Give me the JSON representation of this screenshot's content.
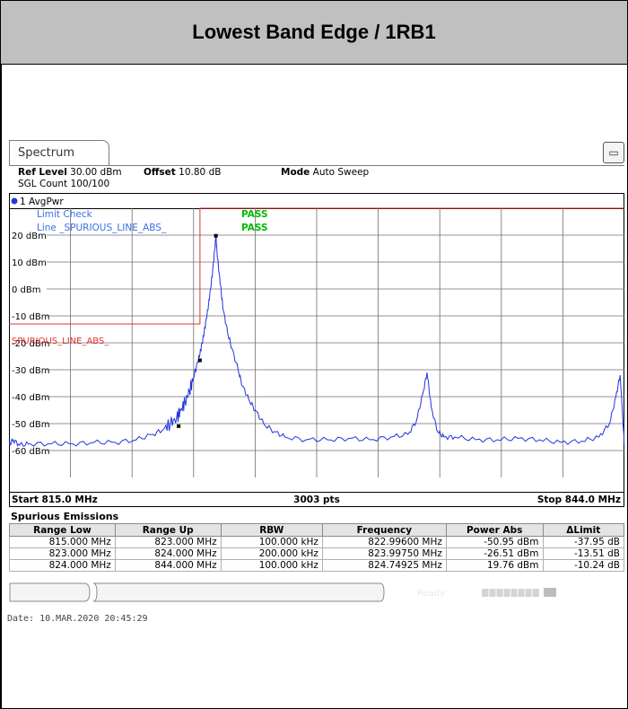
{
  "page": {
    "title": "Lowest Band Edge / 1RB1"
  },
  "tab": {
    "label": "Spectrum",
    "icon": "screen-config-icon"
  },
  "settings": {
    "ref_level_label": "Ref Level",
    "ref_level_value": "30.00 dBm",
    "offset_label": "Offset",
    "offset_value": "10.80 dB",
    "mode_label": "Mode",
    "mode_value": "Auto Sweep",
    "sgl_count": "SGL Count 100/100"
  },
  "trace": {
    "label": "1 AvgPwr"
  },
  "limit": {
    "check_label": "Limit Check",
    "check_result": "PASS",
    "line_label": "Line _SPURIOUS_LINE_ABS_",
    "line_result": "PASS",
    "line_name": "SPURIOUS_LINE_ABS_"
  },
  "footer": {
    "start": "Start 815.0 MHz",
    "points": "3003 pts",
    "stop": "Stop 844.0 MHz"
  },
  "spurious": {
    "title": "Spurious Emissions",
    "headers": [
      "Range Low",
      "Range Up",
      "RBW",
      "Frequency",
      "Power Abs",
      "ΔLimit"
    ],
    "rows": [
      [
        "815.000 MHz",
        "823.000 MHz",
        "100.000 kHz",
        "822.99600 MHz",
        "-50.95 dBm",
        "-37.95 dB"
      ],
      [
        "823.000 MHz",
        "824.000 MHz",
        "200.000 kHz",
        "823.99750 MHz",
        "-26.51 dBm",
        "-13.51 dB"
      ],
      [
        "824.000 MHz",
        "844.000 MHz",
        "100.000 kHz",
        "824.74925 MHz",
        "19.76 dBm",
        "-10.24 dB"
      ]
    ]
  },
  "status": {
    "ready": "Ready"
  },
  "date": "Date: 10.MAR.2020  20:45:29",
  "chart_data": {
    "type": "line",
    "xlim": [
      815.0,
      844.0
    ],
    "ylim": [
      -70,
      30
    ],
    "y_tick_labels": [
      "20 dBm",
      "10 dBm",
      "0 dBm",
      "-10 dBm",
      "-20 dBm",
      "-30 dBm",
      "-40 dBm",
      "-50 dBm",
      "-60 dBm"
    ],
    "y_ticks": [
      20,
      10,
      0,
      -10,
      -20,
      -30,
      -40,
      -50,
      -60
    ],
    "grid": true,
    "colors": {
      "trace": "#2233dd",
      "limit": "#e03030",
      "pass": "#00bb00",
      "label": "#3a6fe0"
    },
    "limit_line": {
      "name": "SPURIOUS_LINE_ABS_",
      "x": [
        815.0,
        823.0,
        823.0,
        824.0,
        824.0,
        844.0
      ],
      "y": [
        -13.0,
        -13.0,
        -13.0,
        -13.0,
        30.0,
        30.0
      ]
    },
    "markers": [
      {
        "x": 822.996,
        "y": -50.95
      },
      {
        "x": 823.9975,
        "y": -26.51
      },
      {
        "x": 824.74925,
        "y": 19.76
      }
    ],
    "series": [
      {
        "values_x": [
          815.0,
          815.2,
          815.5,
          816.0,
          817.0,
          818.0,
          819.0,
          820.0,
          821.0,
          821.8,
          822.3,
          822.6,
          822.9,
          823.1,
          823.3,
          823.5,
          823.7,
          823.9,
          824.0,
          824.1,
          824.2,
          824.3,
          824.4,
          824.5,
          824.6,
          824.7,
          824.75,
          824.8,
          824.9,
          825.0,
          825.1,
          825.3,
          825.5,
          825.8,
          826.0,
          826.3,
          826.6,
          827.0,
          827.5,
          828.0,
          829.0,
          830.0,
          831.0,
          832.0,
          833.0,
          833.8,
          834.2,
          834.5,
          834.7,
          834.9,
          835.2,
          835.5,
          836.0,
          837.0,
          838.0,
          839.0,
          840.0,
          841.0,
          842.0,
          842.8,
          843.3,
          843.6,
          843.8,
          844.0
        ],
        "values_y": [
          -58,
          -56,
          -58,
          -57.5,
          -57.5,
          -57.5,
          -57,
          -57,
          -56,
          -54,
          -52,
          -50,
          -48,
          -45,
          -42,
          -38,
          -33,
          -27,
          -24,
          -20,
          -16,
          -11,
          -6,
          0,
          7,
          15,
          20,
          14,
          6,
          -1,
          -8,
          -16,
          -22,
          -30,
          -36,
          -41,
          -45,
          -50,
          -53,
          -55,
          -56,
          -56,
          -55.5,
          -56,
          -55,
          -54,
          -49,
          -39,
          -31,
          -44,
          -53,
          -55,
          -55,
          -56,
          -56,
          -55.5,
          -56,
          -57,
          -56.5,
          -55,
          -50,
          -40,
          -32,
          -58
        ]
      }
    ]
  }
}
